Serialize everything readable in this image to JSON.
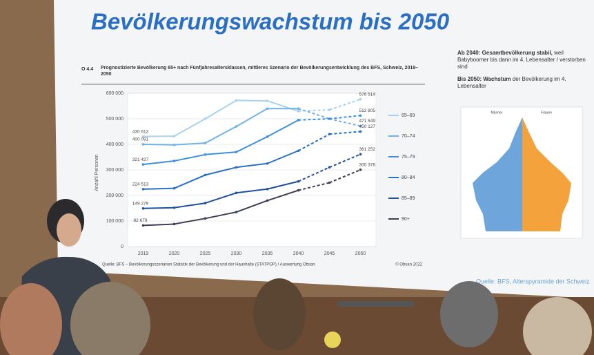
{
  "slide": {
    "title": "Bevölkerungswachstum bis 2050",
    "notes": [
      {
        "strong": "Ab 2040: Gesamtbevölkerung stabil,",
        "text": "weil Babyboomer bis dann im 4. Lebensalter / verstorben sind"
      },
      {
        "strong": "Bis 2050: Wachstum",
        "text": "der Bevölkerung im 4. Lebensalter"
      }
    ],
    "pyramid": {
      "left": "Männer",
      "right": "Frauen"
    },
    "footer_right": "Quelle: BFS, Alterspyramide der Schweiz"
  },
  "chart_data": {
    "type": "line",
    "number": "O 4.4",
    "title": "Prognostizierte Bevölkerung 65+ nach Fünfjahresaltersklassen, mittleres Szenario der Bevölkerungsentwicklung des BFS, Schweiz, 2019–2050",
    "y_label": "Anzahl Personen",
    "source": "Quelle: BFS – Bevölkerungsszenarien Statistik der Bevölkerung und der Haushalte (STATPOP) / Auswertung Obsan",
    "copyright": "© Obsan 2022",
    "dashed_after": "2040",
    "grid": true,
    "legend": "right",
    "categories": [
      "2019",
      "2020",
      "2025",
      "2030",
      "2035",
      "2040",
      "2045",
      "2050"
    ],
    "ylim": [
      0,
      600000
    ],
    "yticks": [
      0,
      {
        "value": 100000,
        "label": "100 000"
      },
      {
        "value": 200000,
        "label": "200 000"
      },
      {
        "value": 300000,
        "label": "300 000"
      },
      {
        "value": 400000,
        "label": "400 000"
      },
      {
        "value": 500000,
        "label": "500 000"
      },
      {
        "value": 600000,
        "label": "600 000"
      }
    ],
    "series": [
      {
        "name": "65–69",
        "color": "#a9d2f0",
        "values": [
          430612,
          432000,
          500000,
          572000,
          570000,
          530000,
          535000,
          576514
        ],
        "value_labels": [
          "430 612",
          null,
          null,
          null,
          null,
          null,
          null,
          "576 514"
        ]
      },
      {
        "name": "70–74",
        "color": "#6fb2e6",
        "values": [
          400091,
          398000,
          405000,
          470000,
          540000,
          540000,
          500000,
          471549
        ],
        "value_labels": [
          "400 091",
          null,
          null,
          null,
          null,
          null,
          null,
          "471 549"
        ]
      },
      {
        "name": "75–79",
        "color": "#3f8fd8",
        "values": [
          321427,
          335000,
          360000,
          370000,
          430000,
          495000,
          500000,
          512805
        ],
        "value_labels": [
          "321 427",
          null,
          null,
          null,
          null,
          null,
          null,
          "512 805"
        ]
      },
      {
        "name": "80–84",
        "color": "#2a6fc4",
        "values": [
          224513,
          228000,
          280000,
          310000,
          325000,
          375000,
          440000,
          450127
        ],
        "value_labels": [
          "224 513",
          null,
          null,
          null,
          null,
          null,
          null,
          "450 127"
        ]
      },
      {
        "name": "85–89",
        "color": "#1f4f9c",
        "values": [
          149279,
          152000,
          170000,
          210000,
          225000,
          255000,
          310000,
          361252
        ],
        "value_labels": [
          "149 279",
          null,
          null,
          null,
          null,
          null,
          null,
          "361 252"
        ]
      },
      {
        "name": "90+",
        "color": "#3c3f52",
        "values": [
          82679,
          88000,
          110000,
          135000,
          180000,
          220000,
          250000,
          300378
        ],
        "value_labels": [
          "82 679",
          null,
          null,
          null,
          null,
          null,
          null,
          "300 378"
        ]
      }
    ]
  }
}
